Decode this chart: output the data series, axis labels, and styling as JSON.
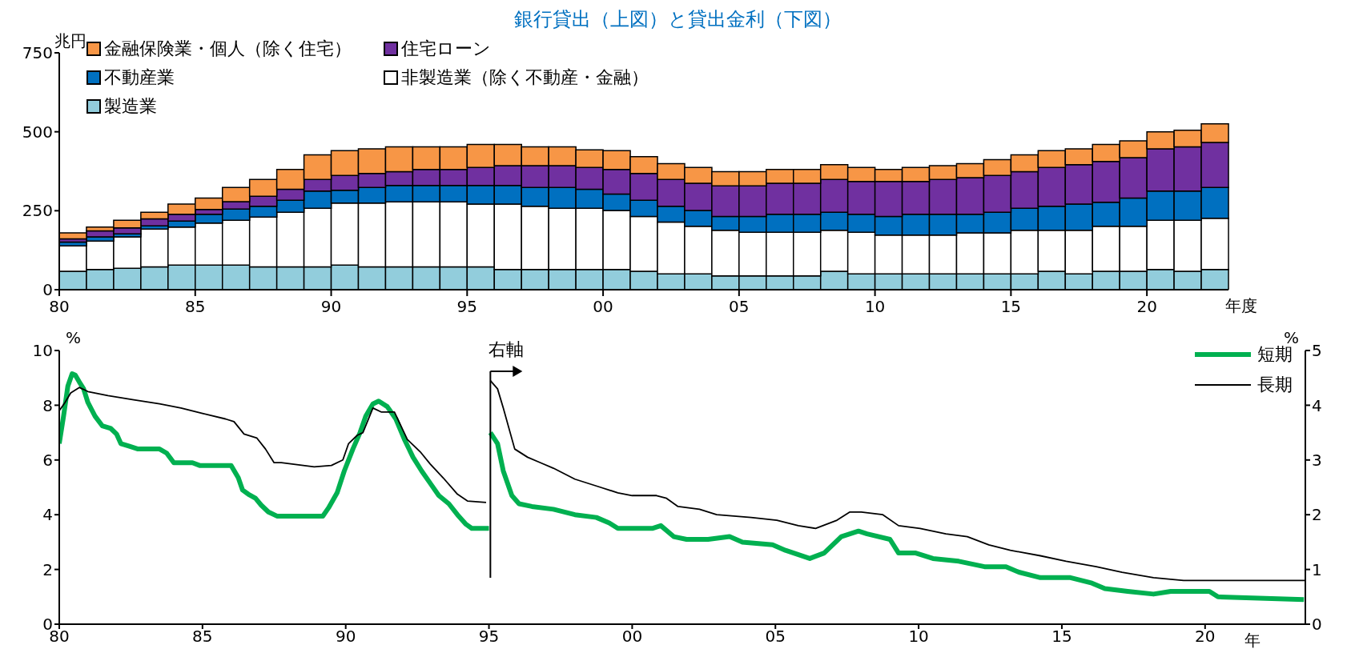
{
  "chart_data": [
    {
      "type": "bar",
      "title": "銀行貸出（上図）と貸出金利（下図）",
      "ylabel": "兆円",
      "xlabel": "年度",
      "stacked": true,
      "legend": "top left",
      "categories": [
        "80",
        null,
        null,
        null,
        null,
        "85",
        null,
        null,
        null,
        null,
        "90",
        null,
        null,
        null,
        null,
        "95",
        null,
        null,
        null,
        null,
        "00",
        null,
        null,
        null,
        null,
        "05",
        null,
        null,
        null,
        null,
        "10",
        null,
        null,
        null,
        null,
        "15",
        null,
        null,
        null,
        null,
        "20",
        null,
        null
      ],
      "ylim": [
        0,
        750
      ],
      "yticks": [
        0,
        250,
        500,
        750
      ],
      "series": [
        {
          "name": "製造業",
          "color": "#92cddc",
          "values": [
            58,
            64,
            68,
            72,
            78,
            78,
            78,
            72,
            72,
            72,
            78,
            72,
            72,
            72,
            72,
            72,
            64,
            64,
            64,
            64,
            64,
            58,
            50,
            50,
            44,
            44,
            44,
            44,
            58,
            50,
            50,
            50,
            50,
            50,
            50,
            50,
            58,
            50,
            58,
            58,
            64,
            58,
            64
          ]
        },
        {
          "name": "非製造業（除く不動産・金融）",
          "color": "#ffffff",
          "values": [
            81,
            90,
            99,
            120,
            120,
            133,
            142,
            158,
            173,
            186,
            196,
            202,
            206,
            206,
            206,
            199,
            207,
            200,
            194,
            194,
            187,
            174,
            164,
            151,
            144,
            138,
            138,
            138,
            130,
            132,
            123,
            123,
            123,
            130,
            130,
            138,
            130,
            138,
            143,
            143,
            156,
            162,
            162
          ]
        },
        {
          "name": "不動産業",
          "color": "#0070c0",
          "values": [
            12,
            13,
            10,
            10,
            19,
            28,
            35,
            34,
            38,
            54,
            41,
            50,
            52,
            52,
            52,
            59,
            59,
            60,
            66,
            60,
            52,
            51,
            50,
            50,
            44,
            50,
            57,
            57,
            57,
            57,
            59,
            66,
            66,
            59,
            65,
            70,
            76,
            83,
            76,
            89,
            92,
            92,
            98
          ]
        },
        {
          "name": "住宅ローン",
          "color": "#7030a0",
          "values": [
            10,
            19,
            19,
            22,
            22,
            15,
            24,
            32,
            35,
            37,
            47,
            44,
            44,
            51,
            51,
            57,
            63,
            69,
            69,
            69,
            78,
            85,
            85,
            86,
            97,
            97,
            98,
            98,
            104,
            104,
            111,
            104,
            110,
            116,
            117,
            116,
            123,
            125,
            129,
            128,
            134,
            140,
            142
          ]
        },
        {
          "name": "金融保険業・個人（除く住宅）",
          "color": "#f79646",
          "values": [
            19,
            12,
            24,
            21,
            32,
            36,
            45,
            53,
            63,
            78,
            78,
            78,
            78,
            71,
            71,
            73,
            67,
            59,
            59,
            56,
            59,
            53,
            50,
            50,
            45,
            45,
            44,
            44,
            47,
            44,
            38,
            44,
            44,
            44,
            50,
            53,
            53,
            50,
            54,
            53,
            54,
            53,
            59
          ]
        }
      ]
    },
    {
      "type": "line",
      "xlabel": "年",
      "ylabel": "%",
      "y2label": "%",
      "legend": "top right",
      "marker": "none",
      "line_style": "solid",
      "xlim": [
        1980,
        2023.5
      ],
      "xticks": [
        {
          "value": 1980,
          "label": "80"
        },
        {
          "value": 1985,
          "label": "85"
        },
        {
          "value": 1990,
          "label": "90"
        },
        {
          "value": 1995,
          "label": "95"
        },
        {
          "value": 2000,
          "label": "00"
        },
        {
          "value": 2005,
          "label": "05"
        },
        {
          "value": 2010,
          "label": "10"
        },
        {
          "value": 2015,
          "label": "15"
        },
        {
          "value": 2020,
          "label": "20"
        }
      ],
      "ylim": [
        0,
        10
      ],
      "yticks": [
        0,
        2,
        4,
        6,
        8,
        10
      ],
      "y2lim": [
        0,
        5
      ],
      "y2ticks": [
        0,
        1,
        2,
        3,
        4,
        5
      ],
      "annotations": [
        "右軸"
      ],
      "series": [
        {
          "name": "短期",
          "color": "#00b050",
          "x": [
            1980,
            1980.15,
            1980.3,
            1980.45,
            1980.56,
            1980.7,
            1980.85,
            1981,
            1981.25,
            1981.5,
            1981.8,
            1982,
            1982.15,
            1982.45,
            1982.75,
            1983.5,
            1983.75,
            1984,
            1984.65,
            1984.9,
            1986,
            1986.25,
            1986.4,
            1986.6,
            1986.85,
            1987.05,
            1987.3,
            1987.6,
            1989.2,
            1989.4,
            1989.7,
            1989.95,
            1990.25,
            1990.5,
            1990.7,
            1990.95,
            1991.15,
            1991.45,
            1991.75,
            1992.05,
            1992.35,
            1992.65,
            1992.95,
            1993.25,
            1993.6,
            1993.9,
            1994.2,
            1994.4,
            1995
          ],
          "values": [
            6.6,
            7.6,
            8.7,
            9.15,
            9.1,
            8.85,
            8.6,
            8.1,
            7.6,
            7.25,
            7.15,
            6.95,
            6.6,
            6.5,
            6.4,
            6.4,
            6.25,
            5.9,
            5.9,
            5.8,
            5.8,
            5.35,
            4.9,
            4.75,
            4.6,
            4.35,
            4.1,
            3.95,
            3.95,
            4.25,
            4.8,
            5.6,
            6.4,
            7,
            7.6,
            8.05,
            8.15,
            7.95,
            7.5,
            6.75,
            6.1,
            5.6,
            5.15,
            4.7,
            4.4,
            4,
            3.65,
            3.5,
            3.5
          ]
        },
        {
          "name": "長期",
          "color": "#000000",
          "x": [
            1980,
            1980.2,
            1980.4,
            1980.7,
            1981,
            1981.7,
            1982.6,
            1983.5,
            1984.25,
            1985,
            1985.8,
            1986.1,
            1986.45,
            1986.9,
            1987.2,
            1987.5,
            1987.75,
            1988.9,
            1989.5,
            1989.9,
            1990.1,
            1990.4,
            1990.6,
            1990.95,
            1991.25,
            1991.7,
            1992.15,
            1992.6,
            1992.95,
            1993.4,
            1993.9,
            1994.25,
            1994.9
          ],
          "values": [
            7.8,
            8.1,
            8.45,
            8.65,
            8.5,
            8.35,
            8.2,
            8.05,
            7.9,
            7.7,
            7.5,
            7.4,
            6.95,
            6.8,
            6.4,
            5.9,
            5.9,
            5.75,
            5.8,
            6,
            6.6,
            6.9,
            7,
            7.9,
            7.75,
            7.75,
            6.75,
            6.3,
            5.85,
            5.35,
            4.75,
            4.5,
            4.45
          ]
        },
        {
          "color": "#00b050",
          "axis": "y2",
          "x": [
            1995.05,
            1995.3,
            1995.5,
            1995.8,
            1996.05,
            1996.5,
            1997.25,
            1998,
            1998.75,
            1999.2,
            1999.5,
            2000.7,
            2001,
            2001.45,
            2001.9,
            2002.65,
            2003.4,
            2003.85,
            2004.9,
            2005.35,
            2006.2,
            2006.7,
            2007.3,
            2007.9,
            2008.2,
            2009,
            2009.3,
            2009.9,
            2010.5,
            2011.4,
            2012.3,
            2013.05,
            2013.5,
            2014.25,
            2015.3,
            2016.05,
            2016.5,
            2017.3,
            2018.2,
            2018.8,
            2020.15,
            2020.45,
            2023.45
          ],
          "values": [
            3.5,
            3.3,
            2.8,
            2.35,
            2.2,
            2.15,
            2.1,
            2,
            1.95,
            1.85,
            1.75,
            1.75,
            1.8,
            1.6,
            1.55,
            1.55,
            1.6,
            1.5,
            1.45,
            1.35,
            1.2,
            1.3,
            1.6,
            1.7,
            1.65,
            1.55,
            1.3,
            1.3,
            1.2,
            1.15,
            1.05,
            1.05,
            0.95,
            0.85,
            0.85,
            0.75,
            0.65,
            0.6,
            0.55,
            0.6,
            0.6,
            0.5,
            0.45
          ]
        },
        {
          "color": "#000000",
          "axis": "y2",
          "x": [
            1995.05,
            1995.3,
            1995.5,
            1995.9,
            1996.35,
            1996.8,
            1997.25,
            1998,
            1998.9,
            1999.5,
            2000,
            2000.85,
            2001.2,
            2001.6,
            2002.35,
            2002.95,
            2004.15,
            2005.05,
            2005.8,
            2006.4,
            2007.15,
            2007.6,
            2008,
            2008.75,
            2009.3,
            2010.05,
            2010.95,
            2011.7,
            2012.45,
            2013.2,
            2014.25,
            2015.15,
            2016.2,
            2017.1,
            2018.2,
            2019.25,
            2020.2,
            2023.5
          ],
          "values": [
            4.45,
            4.3,
            3.95,
            3.2,
            3.05,
            2.95,
            2.85,
            2.65,
            2.5,
            2.4,
            2.35,
            2.35,
            2.3,
            2.15,
            2.1,
            2,
            1.95,
            1.9,
            1.8,
            1.75,
            1.9,
            2.05,
            2.05,
            2,
            1.8,
            1.75,
            1.65,
            1.6,
            1.45,
            1.35,
            1.25,
            1.15,
            1.05,
            0.95,
            0.85,
            0.8,
            0.8,
            0.8
          ]
        }
      ]
    }
  ]
}
